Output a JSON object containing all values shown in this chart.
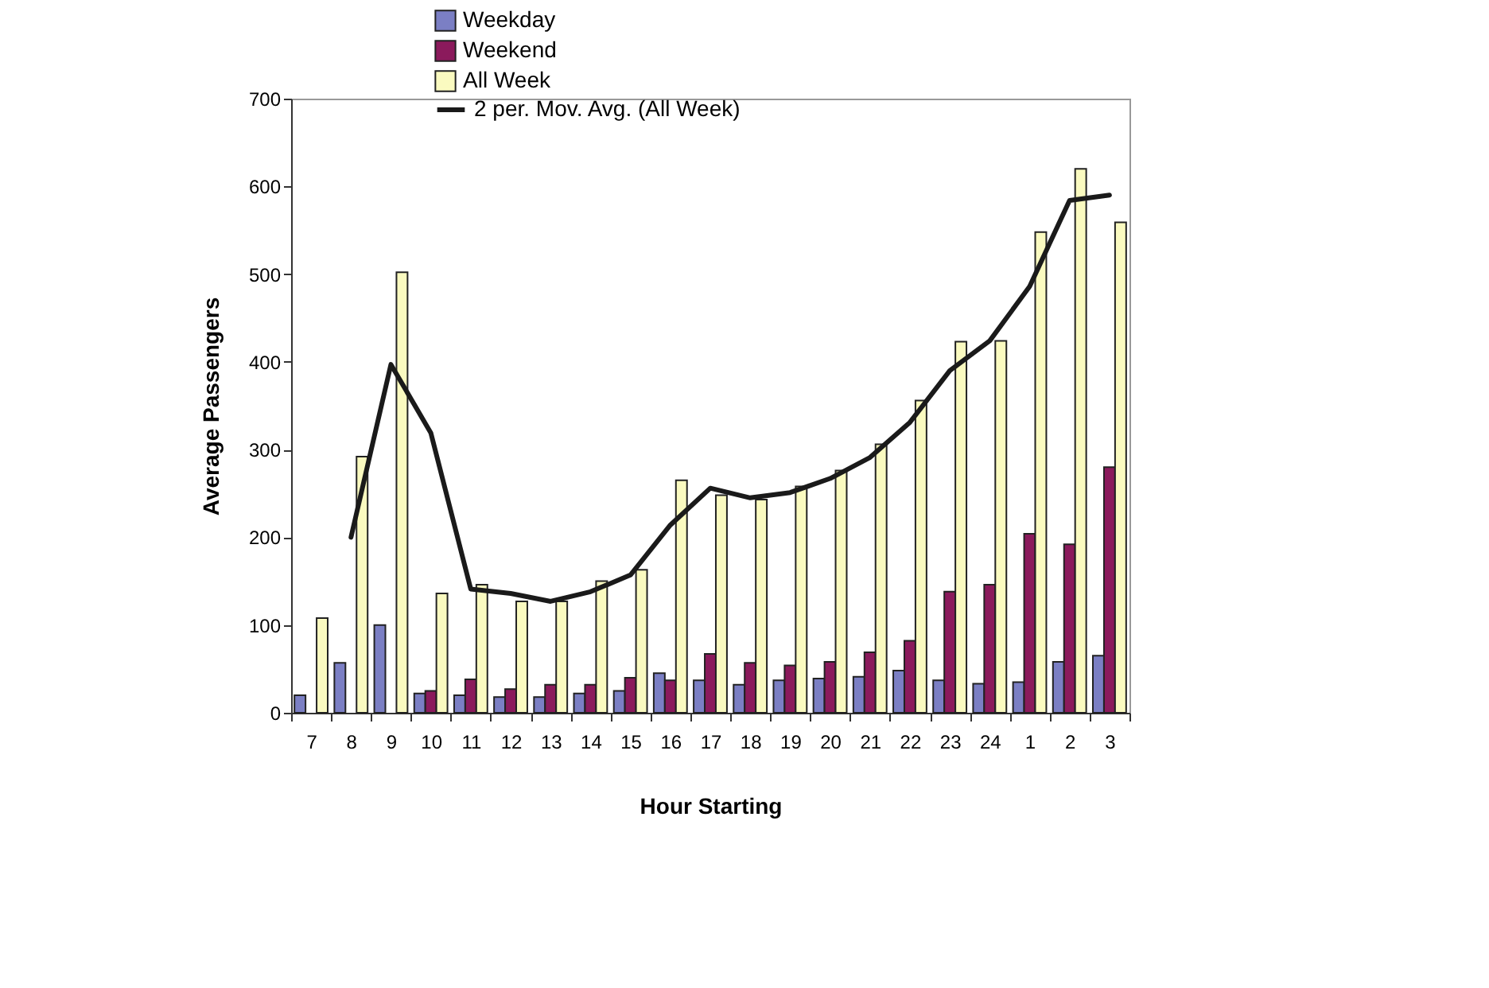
{
  "chart_data": {
    "type": "bar",
    "xlabel": "Hour Starting",
    "ylabel": "Average Passengers",
    "categories": [
      "7",
      "8",
      "9",
      "10",
      "11",
      "12",
      "13",
      "14",
      "15",
      "16",
      "17",
      "18",
      "19",
      "20",
      "21",
      "22",
      "23",
      "24",
      "1",
      "2",
      "3"
    ],
    "series": [
      {
        "name": "Weekday",
        "type": "bar",
        "color": "#7b7fc4",
        "values": [
          20,
          57,
          100,
          22,
          20,
          18,
          18,
          22,
          25,
          45,
          37,
          32,
          37,
          39,
          41,
          48,
          37,
          33,
          35,
          58,
          65
        ]
      },
      {
        "name": "Weekend",
        "type": "bar",
        "color": "#8b1a5c",
        "values": [
          null,
          null,
          null,
          25,
          38,
          27,
          32,
          32,
          40,
          37,
          67,
          57,
          54,
          58,
          69,
          82,
          138,
          146,
          204,
          192,
          280
        ]
      },
      {
        "name": "All Week",
        "type": "bar",
        "color": "#fafac0",
        "values": [
          108,
          292,
          502,
          136,
          146,
          127,
          127,
          150,
          163,
          265,
          248,
          243,
          258,
          276,
          306,
          356,
          423,
          424,
          548,
          620,
          559
        ]
      },
      {
        "name": "2 per. Mov. Avg. (All Week)",
        "type": "line",
        "color": "#1a1a1a",
        "values": [
          null,
          200,
          397,
          319,
          141,
          136,
          127,
          138,
          157,
          214,
          256,
          245,
          251,
          267,
          291,
          331,
          390,
          424,
          486,
          584,
          590
        ]
      }
    ],
    "ylim": [
      0,
      700
    ],
    "yticks": [
      0,
      100,
      200,
      300,
      400,
      500,
      600,
      700
    ],
    "grid": false,
    "legend": "top"
  }
}
